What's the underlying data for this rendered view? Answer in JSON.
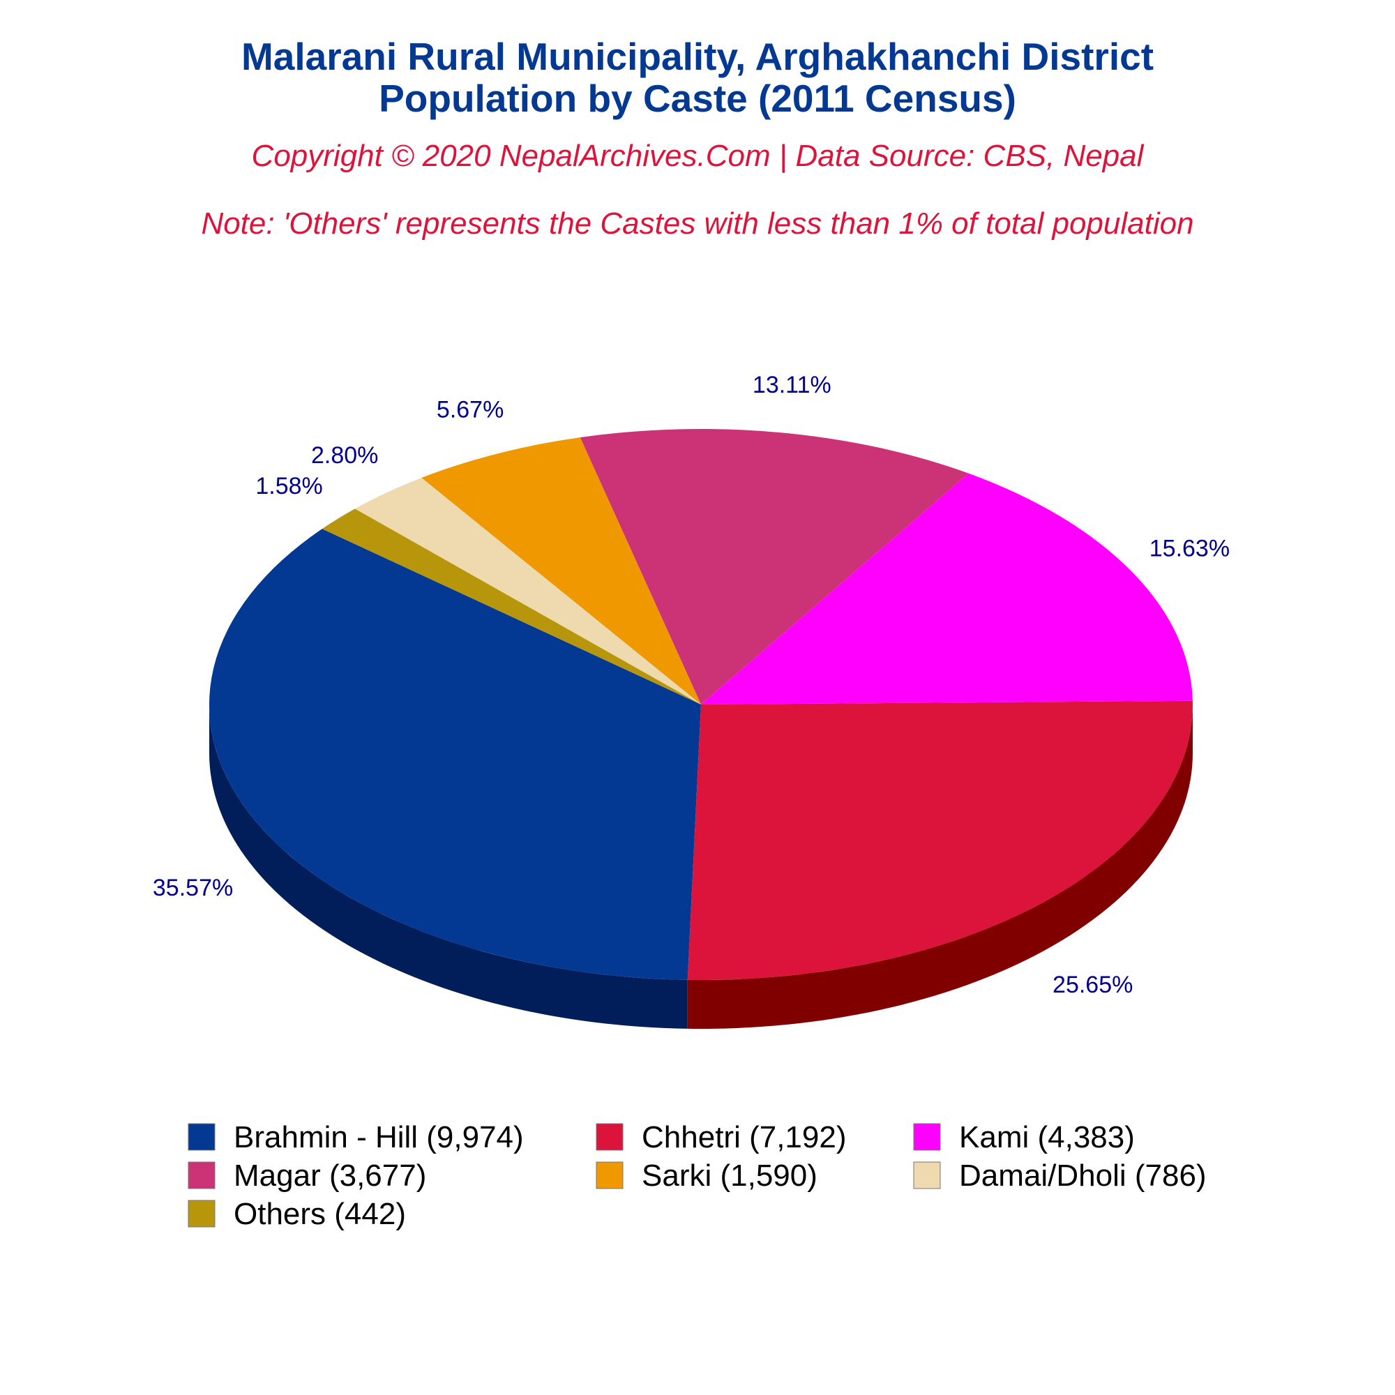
{
  "chart_data": {
    "type": "pie",
    "title_line1": "Malarani Rural Municipality, Arghakhanchi District",
    "title_line2": "Population by Caste (2011 Census)",
    "copyright": "Copyright © 2020 NepalArchives.Com | Data Source: CBS, Nepal",
    "note": "Note: 'Others' represents the Castes with less than 1% of total population",
    "style": "3d",
    "slices": [
      {
        "name": "Brahmin - Hill",
        "value": 9974,
        "percent_label": "35.57%",
        "legend_label": "Brahmin - Hill (9,974)",
        "color": "#033893",
        "side_color": "#021E5A"
      },
      {
        "name": "Chhetri",
        "value": 7192,
        "percent_label": "25.65%",
        "legend_label": "Chhetri (7,192)",
        "color": "#DC143C",
        "side_color": "#800000"
      },
      {
        "name": "Kami",
        "value": 4383,
        "percent_label": "15.63%",
        "legend_label": "Kami (4,383)",
        "color": "#FF00FF",
        "side_color": "#A000A0"
      },
      {
        "name": "Magar",
        "value": 3677,
        "percent_label": "13.11%",
        "legend_label": "Magar (3,677)",
        "color": "#CC3377",
        "side_color": "#6E0022"
      },
      {
        "name": "Sarki",
        "value": 1590,
        "percent_label": "5.67%",
        "legend_label": "Sarki (1,590)",
        "color": "#F09800",
        "side_color": "#8A5700"
      },
      {
        "name": "Damai/Dholi",
        "value": 786,
        "percent_label": "2.80%",
        "legend_label": "Damai/Dholi (786)",
        "color": "#EEDAAE",
        "side_color": "#9C8A62"
      },
      {
        "name": "Others",
        "value": 442,
        "percent_label": "1.58%",
        "legend_label": "Others (442)",
        "color": "#B8960C",
        "side_color": "#6A5606"
      }
    ],
    "legend_placement": "bottom"
  }
}
